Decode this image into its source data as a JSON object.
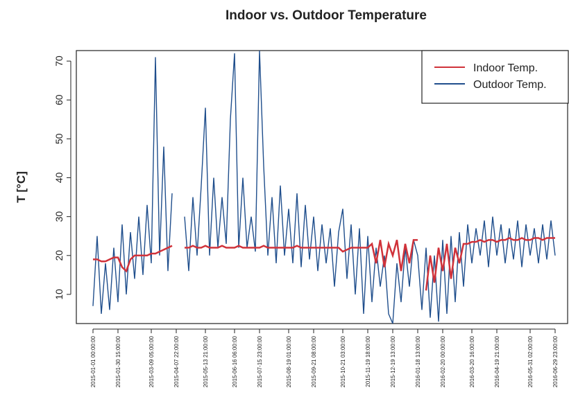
{
  "chart_data": {
    "type": "line",
    "title": "Indoor vs. Outdoor Temperature",
    "y_label": "T [°C]",
    "categories": [
      "2015-01-01 00:00:00",
      null,
      null,
      null,
      null,
      null,
      "2015-01-30 15:00:00",
      null,
      null,
      null,
      null,
      null,
      null,
      null,
      "2015-03-09 05:00:00",
      null,
      null,
      null,
      null,
      null,
      "2015-04-07 22:00:00",
      null,
      null,
      null,
      null,
      null,
      null,
      "2015-05-13 21:00:00",
      null,
      null,
      null,
      null,
      null,
      null,
      "2015-06-16 06:00:00",
      null,
      null,
      null,
      null,
      null,
      "2015-07-15 23:00:00",
      null,
      null,
      null,
      null,
      null,
      null,
      "2015-08-19 01:00:00",
      null,
      null,
      null,
      null,
      null,
      "2015-09-21 08:00:00",
      null,
      null,
      null,
      null,
      null,
      null,
      "2015-10-21 03:00:00",
      null,
      null,
      null,
      null,
      null,
      "2015-11-19 18:00:00",
      null,
      null,
      null,
      null,
      null,
      "2015-12-19 13:00:00",
      null,
      null,
      null,
      null,
      null,
      "2016-01-18 13:00:00",
      null,
      null,
      null,
      null,
      null,
      "2016-02-20 00:00:00",
      null,
      null,
      null,
      null,
      null,
      null,
      "2016-03-20 16:00:00",
      null,
      null,
      null,
      null,
      null,
      "2016-04-19 21:00:00",
      null,
      null,
      null,
      null,
      null,
      null,
      null,
      "2016-05-31 02:00:00",
      null,
      null,
      null,
      null,
      null,
      "2016-06-29 23:00:00"
    ],
    "series": [
      {
        "name": "Indoor Temp.",
        "color": "#d0323a",
        "values": [
          19,
          19,
          18.5,
          18.5,
          19,
          19.5,
          19.5,
          17,
          16,
          19,
          20,
          20,
          20,
          20,
          20.5,
          20.5,
          21,
          21.5,
          22,
          22.5,
          null,
          null,
          22,
          22,
          22.5,
          22,
          22,
          22.5,
          22,
          22,
          22,
          22.5,
          22,
          22,
          22,
          22.5,
          22,
          22,
          22,
          22,
          22,
          22.5,
          22,
          22,
          22,
          22,
          22,
          22,
          22,
          22.5,
          22,
          22,
          22,
          22,
          22,
          22,
          22,
          22,
          22,
          22,
          21,
          21.5,
          22,
          22,
          22,
          22,
          22,
          23,
          18,
          24,
          17,
          23,
          20,
          24,
          16,
          23,
          18,
          24,
          24,
          null,
          11,
          20,
          13,
          22,
          16,
          23,
          14,
          22,
          18,
          23,
          23,
          23.5,
          23.5,
          24,
          23.5,
          24,
          24,
          23.5,
          24,
          24,
          24.5,
          24,
          24,
          24.5,
          24,
          24,
          24.5,
          24.5,
          24,
          24.5,
          24.5,
          24.5
        ]
      },
      {
        "name": "Outdoor Temp.",
        "color": "#1f4e8c",
        "values": [
          7,
          25,
          5,
          18,
          6,
          22,
          8,
          28,
          10,
          26,
          14,
          30,
          15,
          33,
          18,
          71,
          20,
          48,
          16,
          36,
          null,
          null,
          30,
          16,
          35,
          20,
          38,
          58,
          20,
          40,
          22,
          35,
          23,
          55,
          72,
          22,
          40,
          22,
          30,
          21,
          72.7,
          43,
          20,
          35,
          18,
          38,
          20,
          32,
          18,
          36,
          17,
          33,
          19,
          30,
          16,
          28,
          18,
          27,
          12,
          26,
          32,
          14,
          28,
          10,
          27,
          5,
          25,
          8,
          22,
          12,
          20,
          5,
          2.5,
          18,
          8,
          22,
          12,
          24,
          20,
          6,
          22,
          4,
          20,
          3,
          24,
          5,
          25,
          8,
          26,
          12,
          28,
          18,
          27,
          20,
          29,
          17,
          30,
          20,
          28,
          18,
          27,
          19,
          29,
          17,
          28,
          20,
          27,
          18,
          28,
          19,
          29,
          20
        ]
      }
    ],
    "ylim": [
      2.5,
      72.7
    ],
    "yticks": [
      10,
      20,
      30,
      40,
      50,
      60,
      70
    ],
    "legend": "top-right"
  }
}
